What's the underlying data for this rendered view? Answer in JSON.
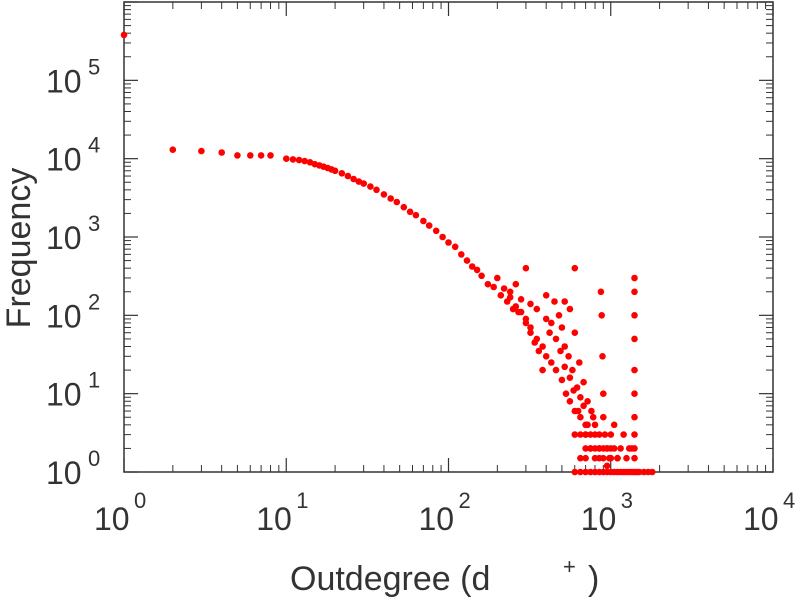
{
  "chart_data": {
    "type": "scatter",
    "title": "",
    "xlabel": "Outdegree (d",
    "xlabel_sup": "+",
    "xlabel_close": ")",
    "ylabel": "Frequency",
    "x_scale": "log",
    "y_scale": "log",
    "xlim": [
      1,
      10000
    ],
    "ylim": [
      1,
      1000000
    ],
    "grid": false,
    "legend": "none",
    "marker_color": "#ff0000",
    "axis_color": "#333333",
    "x_ticks": [
      {
        "base": "10",
        "exp": "0"
      },
      {
        "base": "10",
        "exp": "1"
      },
      {
        "base": "10",
        "exp": "2"
      },
      {
        "base": "10",
        "exp": "3"
      },
      {
        "base": "10",
        "exp": "4"
      }
    ],
    "y_ticks": [
      {
        "base": "10",
        "exp": "0"
      },
      {
        "base": "10",
        "exp": "1"
      },
      {
        "base": "10",
        "exp": "2"
      },
      {
        "base": "10",
        "exp": "3"
      },
      {
        "base": "10",
        "exp": "4"
      },
      {
        "base": "10",
        "exp": "5"
      }
    ],
    "points": [
      [
        1,
        380000
      ],
      [
        2,
        13000
      ],
      [
        3,
        12500
      ],
      [
        4,
        12000
      ],
      [
        5,
        11000
      ],
      [
        6,
        11000
      ],
      [
        7,
        11000
      ],
      [
        8,
        11000
      ],
      [
        10,
        10000
      ],
      [
        11,
        9800
      ],
      [
        12,
        9600
      ],
      [
        13,
        9300
      ],
      [
        14,
        9000
      ],
      [
        15,
        8500
      ],
      [
        16,
        8200
      ],
      [
        17,
        7900
      ],
      [
        18,
        7600
      ],
      [
        19,
        7300
      ],
      [
        20,
        7000
      ],
      [
        22,
        6500
      ],
      [
        24,
        6000
      ],
      [
        26,
        5500
      ],
      [
        28,
        5100
      ],
      [
        30,
        4800
      ],
      [
        33,
        4400
      ],
      [
        36,
        4000
      ],
      [
        40,
        3500
      ],
      [
        44,
        3100
      ],
      [
        48,
        2800
      ],
      [
        53,
        2400
      ],
      [
        58,
        2100
      ],
      [
        63,
        1900
      ],
      [
        70,
        1600
      ],
      [
        76,
        1400
      ],
      [
        84,
        1200
      ],
      [
        92,
        1000
      ],
      [
        100,
        850
      ],
      [
        110,
        750
      ],
      [
        120,
        600
      ],
      [
        130,
        500
      ],
      [
        140,
        420
      ],
      [
        150,
        380
      ],
      [
        160,
        320
      ],
      [
        175,
        250
      ],
      [
        190,
        230
      ],
      [
        210,
        180
      ],
      [
        230,
        150
      ],
      [
        250,
        120
      ],
      [
        270,
        110
      ],
      [
        300,
        80
      ],
      [
        320,
        70
      ],
      [
        350,
        50
      ],
      [
        380,
        40
      ],
      [
        400,
        30
      ],
      [
        430,
        25
      ],
      [
        460,
        20
      ],
      [
        500,
        15
      ],
      [
        530,
        10
      ],
      [
        560,
        8
      ],
      [
        600,
        6
      ],
      [
        650,
        5
      ],
      [
        700,
        4
      ],
      [
        750,
        3
      ],
      [
        800,
        2
      ],
      [
        900,
        2
      ],
      [
        200,
        300
      ],
      [
        240,
        200
      ],
      [
        280,
        160
      ],
      [
        300,
        400
      ],
      [
        260,
        250
      ],
      [
        220,
        220
      ],
      [
        320,
        140
      ],
      [
        350,
        120
      ],
      [
        400,
        90
      ],
      [
        420,
        60
      ],
      [
        450,
        150
      ],
      [
        480,
        100
      ],
      [
        500,
        70
      ],
      [
        520,
        40
      ],
      [
        550,
        30
      ],
      [
        580,
        20
      ],
      [
        600,
        400
      ],
      [
        620,
        12
      ],
      [
        650,
        9
      ],
      [
        680,
        7
      ],
      [
        700,
        3
      ],
      [
        720,
        4
      ],
      [
        750,
        2
      ],
      [
        780,
        5
      ],
      [
        800,
        3
      ],
      [
        850,
        2
      ],
      [
        900,
        1.5
      ],
      [
        950,
        1.2
      ],
      [
        1000,
        2
      ],
      [
        1100,
        1.5
      ],
      [
        1200,
        3
      ],
      [
        1300,
        2
      ],
      [
        380,
        20
      ],
      [
        360,
        35
      ],
      [
        340,
        45
      ],
      [
        320,
        60
      ],
      [
        300,
        90
      ],
      [
        280,
        110
      ],
      [
        260,
        130
      ],
      [
        240,
        170
      ],
      [
        400,
        180
      ],
      [
        430,
        80
      ],
      [
        460,
        50
      ],
      [
        490,
        35
      ],
      [
        520,
        22
      ],
      [
        560,
        16
      ],
      [
        590,
        11
      ],
      [
        630,
        6
      ],
      [
        520,
        150
      ],
      [
        560,
        120
      ],
      [
        600,
        60
      ],
      [
        640,
        25
      ],
      [
        680,
        14
      ],
      [
        720,
        8
      ],
      [
        760,
        6
      ],
      [
        800,
        4
      ],
      [
        900,
        5
      ],
      [
        920,
        3
      ],
      [
        950,
        2
      ],
      [
        980,
        1.5
      ],
      [
        1050,
        4
      ],
      [
        1150,
        2
      ],
      [
        1250,
        1.5
      ],
      [
        1350,
        2
      ],
      [
        870,
        200
      ],
      [
        880,
        100
      ],
      [
        890,
        30
      ],
      [
        900,
        10
      ],
      [
        1400,
        300
      ],
      [
        1400,
        200
      ],
      [
        1400,
        100
      ],
      [
        1400,
        50
      ],
      [
        1400,
        20
      ],
      [
        1400,
        10
      ],
      [
        1400,
        5
      ],
      [
        1400,
        3
      ],
      [
        1400,
        2
      ],
      [
        1400,
        1.5
      ],
      [
        1400,
        1
      ],
      [
        600,
        1
      ],
      [
        650,
        1
      ],
      [
        700,
        1
      ],
      [
        750,
        1
      ],
      [
        800,
        1
      ],
      [
        850,
        1
      ],
      [
        900,
        1
      ],
      [
        950,
        1
      ],
      [
        1000,
        1
      ],
      [
        1050,
        1
      ],
      [
        1100,
        1
      ],
      [
        1150,
        1
      ],
      [
        1200,
        1
      ],
      [
        1250,
        1
      ],
      [
        1300,
        1
      ],
      [
        1350,
        1
      ],
      [
        1450,
        1
      ],
      [
        1500,
        1
      ],
      [
        1600,
        1
      ],
      [
        1700,
        1
      ],
      [
        1800,
        1
      ],
      [
        650,
        1.5
      ],
      [
        700,
        1.5
      ],
      [
        800,
        1.5
      ],
      [
        850,
        1.5
      ],
      [
        1000,
        1.5
      ],
      [
        1100,
        1.5
      ],
      [
        700,
        2
      ],
      [
        750,
        2
      ],
      [
        850,
        2
      ],
      [
        950,
        2
      ],
      [
        1050,
        2
      ],
      [
        600,
        3
      ],
      [
        650,
        3
      ],
      [
        700,
        3
      ],
      [
        850,
        3
      ],
      [
        1000,
        3
      ]
    ]
  }
}
